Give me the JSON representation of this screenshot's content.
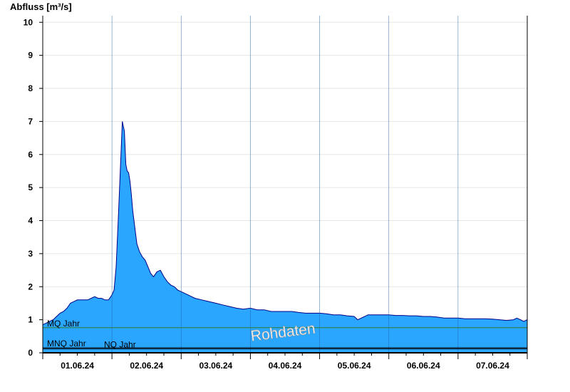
{
  "chart_data": {
    "type": "area",
    "ylabel": "Abfluss [m³/s]",
    "ylim": [
      0,
      10.2
    ],
    "yticks": [
      0,
      1,
      2,
      3,
      4,
      5,
      6,
      7,
      8,
      9,
      10
    ],
    "xlim": [
      0,
      7
    ],
    "x_tick_labels": [
      "01.06.24",
      "02.06.24",
      "03.06.24",
      "04.06.24",
      "05.06.24",
      "06.06.24",
      "07.06.24"
    ],
    "grid": true,
    "fill_color": "#2aa6ff",
    "line_color": "#00008b",
    "reference_lines": [
      {
        "label": "MQ Jahr",
        "value": 0.76,
        "color": "#2e7d32"
      },
      {
        "label": "MNQ Jahr",
        "value": 0.15,
        "color": "#000000"
      },
      {
        "label": "NQ Jahr",
        "value": 0.12,
        "color": "#000000"
      }
    ],
    "watermark": "Rohdaten",
    "series": [
      {
        "x": [
          0.0,
          0.05,
          0.1,
          0.15,
          0.2,
          0.25,
          0.3,
          0.35,
          0.4,
          0.45,
          0.5,
          0.55,
          0.6,
          0.65,
          0.7,
          0.75,
          0.8,
          0.85,
          0.9,
          0.95,
          1.0,
          1.03,
          1.06,
          1.09,
          1.12,
          1.15,
          1.18,
          1.2,
          1.22,
          1.24,
          1.26,
          1.28,
          1.3,
          1.33,
          1.36,
          1.4,
          1.44,
          1.48,
          1.52,
          1.56,
          1.6,
          1.65,
          1.7,
          1.75,
          1.8,
          1.85,
          1.9,
          1.95,
          2.0,
          2.1,
          2.2,
          2.3,
          2.4,
          2.5,
          2.6,
          2.7,
          2.8,
          2.9,
          3.0,
          3.1,
          3.2,
          3.3,
          3.4,
          3.5,
          3.6,
          3.7,
          3.8,
          3.9,
          4.0,
          4.1,
          4.2,
          4.3,
          4.4,
          4.5,
          4.55,
          4.6,
          4.7,
          4.8,
          4.9,
          5.0,
          5.1,
          5.2,
          5.3,
          5.4,
          5.5,
          5.6,
          5.7,
          5.8,
          5.9,
          6.0,
          6.1,
          6.2,
          6.3,
          6.4,
          6.5,
          6.6,
          6.7,
          6.8,
          6.85,
          6.9,
          6.95,
          7.0
        ],
        "y": [
          0.85,
          0.9,
          0.95,
          1.0,
          1.1,
          1.2,
          1.25,
          1.35,
          1.5,
          1.55,
          1.6,
          1.6,
          1.6,
          1.6,
          1.65,
          1.7,
          1.65,
          1.65,
          1.6,
          1.6,
          1.75,
          1.9,
          2.6,
          4.0,
          5.5,
          7.0,
          6.7,
          5.7,
          5.5,
          5.45,
          5.2,
          4.8,
          4.3,
          3.8,
          3.3,
          3.05,
          2.9,
          2.8,
          2.6,
          2.4,
          2.3,
          2.45,
          2.5,
          2.3,
          2.15,
          2.05,
          2.0,
          1.9,
          1.85,
          1.75,
          1.65,
          1.6,
          1.55,
          1.5,
          1.45,
          1.4,
          1.35,
          1.32,
          1.35,
          1.3,
          1.3,
          1.25,
          1.25,
          1.25,
          1.25,
          1.22,
          1.2,
          1.2,
          1.2,
          1.18,
          1.15,
          1.15,
          1.12,
          1.1,
          1.0,
          1.05,
          1.15,
          1.15,
          1.15,
          1.15,
          1.13,
          1.13,
          1.12,
          1.12,
          1.1,
          1.1,
          1.08,
          1.05,
          1.05,
          1.05,
          1.03,
          1.03,
          1.03,
          1.03,
          1.02,
          1.0,
          0.98,
          1.0,
          1.05,
          1.0,
          0.95,
          1.0
        ]
      }
    ]
  }
}
